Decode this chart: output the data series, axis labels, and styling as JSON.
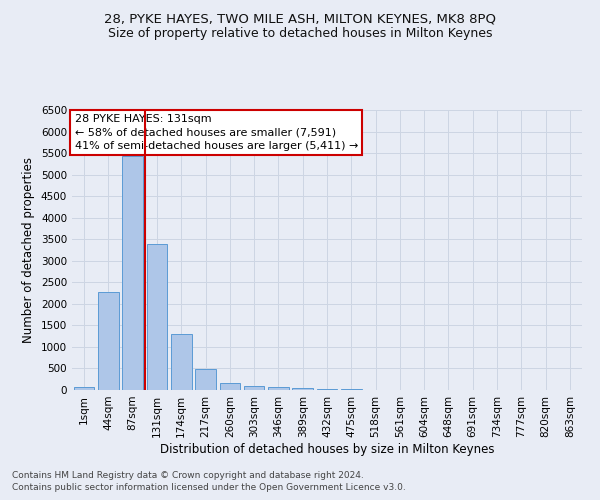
{
  "title": "28, PYKE HAYES, TWO MILE ASH, MILTON KEYNES, MK8 8PQ",
  "subtitle": "Size of property relative to detached houses in Milton Keynes",
  "xlabel": "Distribution of detached houses by size in Milton Keynes",
  "ylabel": "Number of detached properties",
  "footnote1": "Contains HM Land Registry data © Crown copyright and database right 2024.",
  "footnote2": "Contains public sector information licensed under the Open Government Licence v3.0.",
  "categories": [
    "1sqm",
    "44sqm",
    "87sqm",
    "131sqm",
    "174sqm",
    "217sqm",
    "260sqm",
    "303sqm",
    "346sqm",
    "389sqm",
    "432sqm",
    "475sqm",
    "518sqm",
    "561sqm",
    "604sqm",
    "648sqm",
    "691sqm",
    "734sqm",
    "777sqm",
    "820sqm",
    "863sqm"
  ],
  "values": [
    75,
    2280,
    5430,
    3380,
    1290,
    480,
    165,
    90,
    60,
    40,
    30,
    20,
    0,
    0,
    0,
    0,
    0,
    0,
    0,
    0,
    0
  ],
  "bar_color": "#aec6e8",
  "bar_edge_color": "#5b9bd5",
  "highlight_bar_index": 3,
  "highlight_color": "#cc0000",
  "annotation_text": "28 PYKE HAYES: 131sqm\n← 58% of detached houses are smaller (7,591)\n41% of semi-detached houses are larger (5,411) →",
  "annotation_box_color": "#ffffff",
  "annotation_box_edge": "#cc0000",
  "ylim": [
    0,
    6500
  ],
  "yticks": [
    0,
    500,
    1000,
    1500,
    2000,
    2500,
    3000,
    3500,
    4000,
    4500,
    5000,
    5500,
    6000,
    6500
  ],
  "grid_color": "#cdd5e3",
  "background_color": "#e8ecf5",
  "title_fontsize": 9.5,
  "subtitle_fontsize": 9,
  "axis_label_fontsize": 8.5,
  "tick_fontsize": 7.5,
  "annotation_fontsize": 8
}
